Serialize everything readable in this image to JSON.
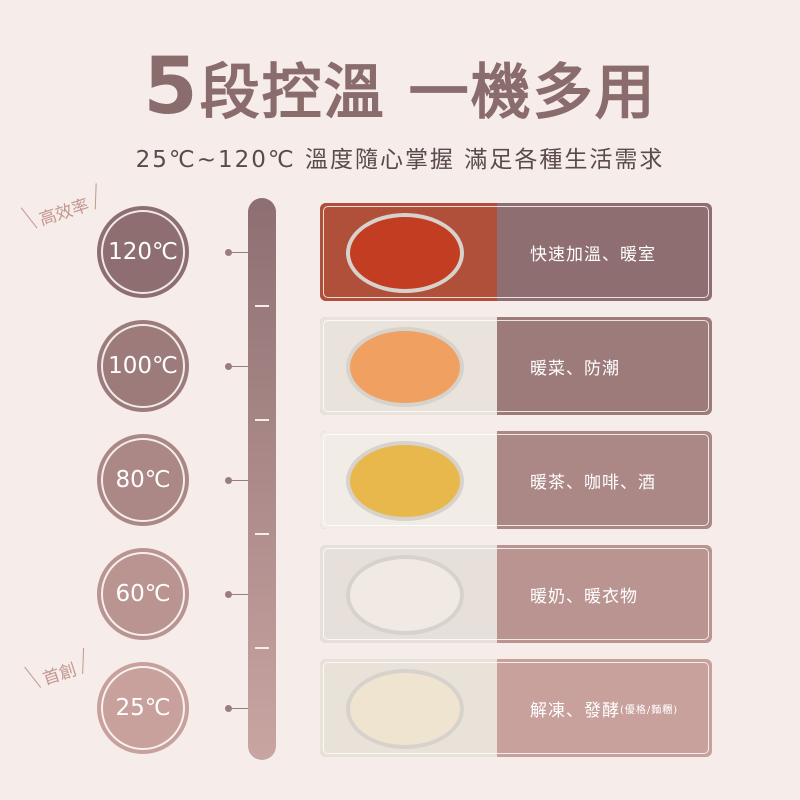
{
  "title": {
    "number": "5",
    "text": "段控溫 一機多用"
  },
  "subtitle": "25℃~120℃ 溫度隨心掌握 滿足各種生活需求",
  "tags": {
    "top": "高效率",
    "bottom": "首創"
  },
  "levels": [
    {
      "temp": "120℃",
      "use": "快速加溫、暖室",
      "note": "",
      "image": "stew-pot"
    },
    {
      "temp": "100℃",
      "use": "暖菜、防潮",
      "note": "",
      "image": "salmon-vegetables"
    },
    {
      "temp": "80℃",
      "use": "暖茶、咖啡、酒",
      "note": "",
      "image": "tea-cups"
    },
    {
      "temp": "60℃",
      "use": "暖奶、暖衣物",
      "note": "",
      "image": "baby-clothes"
    },
    {
      "temp": "25℃",
      "use": "解凍、發酵",
      "note": "(優格/麵糰)",
      "image": "dough-bowl"
    }
  ],
  "colors": {
    "background": "#f6ece9",
    "dark": "#8a6a6c",
    "light": "#c9a09b"
  }
}
